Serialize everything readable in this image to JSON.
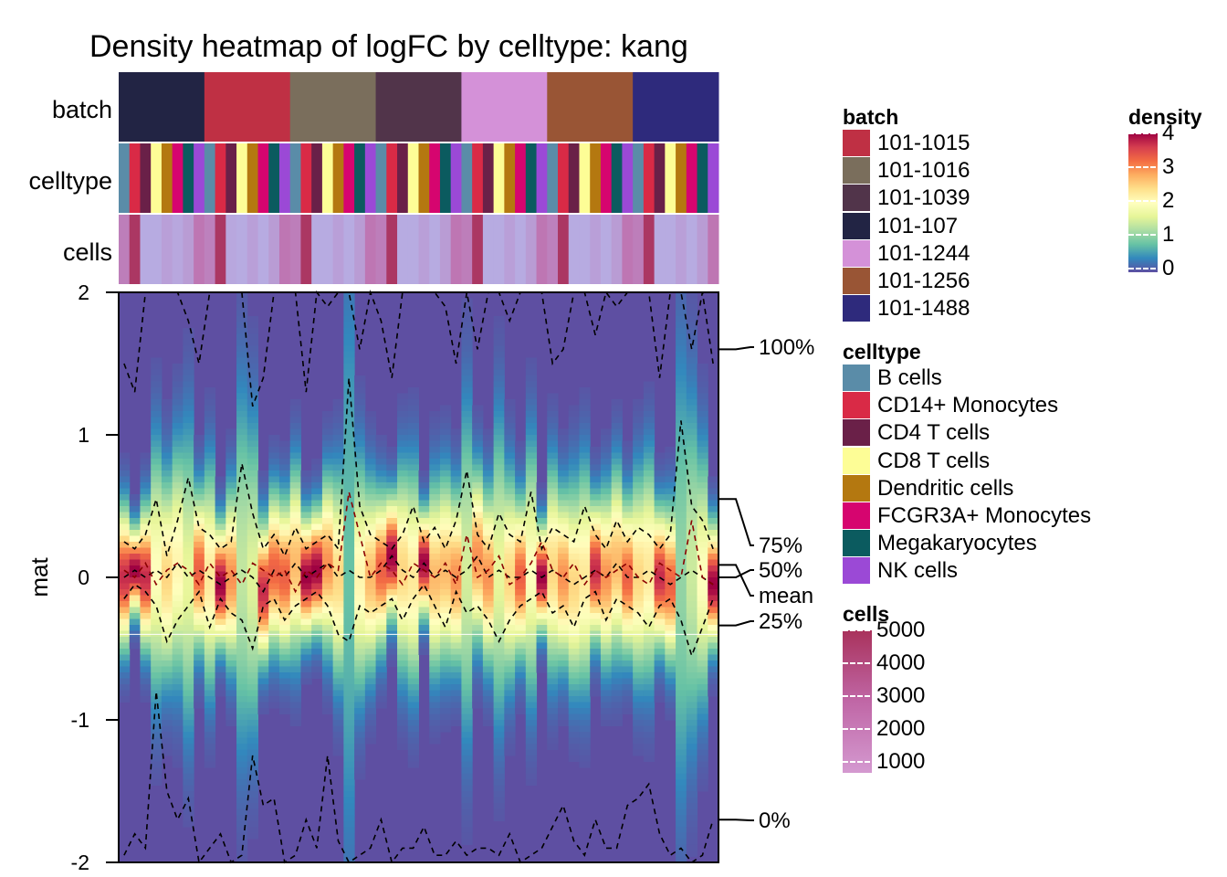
{
  "chart_data": {
    "type": "heatmap",
    "title": "Density heatmap of logFC by celltype: kang",
    "ylabel": "mat",
    "ylim": [
      -2,
      2
    ],
    "y_ticks": [
      "2",
      "1",
      "0",
      "-1",
      "-2"
    ],
    "annotation_rows": [
      "batch",
      "celltype",
      "cells"
    ],
    "batches": [
      "101-107",
      "101-1015",
      "101-1016",
      "101-1039",
      "101-1244",
      "101-1256",
      "101-1488"
    ],
    "celltypes": [
      "B cells",
      "CD14+ Monocytes",
      "CD4 T cells",
      "CD8 T cells",
      "Dendritic cells",
      "FCGR3A+ Monocytes",
      "Megakaryocytes",
      "NK cells"
    ],
    "column_count": 56,
    "cells_per_column": [
      2400,
      4800,
      1200,
      1200,
      1500,
      1300,
      1600,
      2600,
      2300,
      4800,
      1300,
      1200,
      1500,
      1200,
      1600,
      2600,
      2400,
      4800,
      1200,
      1200,
      1500,
      1200,
      1600,
      2600,
      2400,
      4800,
      1200,
      1200,
      1500,
      1200,
      1600,
      2600,
      2400,
      4800,
      1200,
      1200,
      1500,
      1200,
      1600,
      2600,
      2300,
      4800,
      1200,
      1200,
      1500,
      1200,
      1600,
      2600,
      2400,
      4800,
      1200,
      1200,
      1500,
      1200,
      1600,
      2600
    ],
    "quantiles": {
      "q0": [
        -1.95,
        -1.8,
        -1.9,
        -0.8,
        -1.5,
        -1.7,
        -1.55,
        -2,
        -1.9,
        -1.8,
        -2,
        -1.95,
        -1.25,
        -1.6,
        -1.55,
        -2,
        -1.95,
        -1.7,
        -1.9,
        -1.25,
        -1.85,
        -2,
        -1.95,
        -1.9,
        -1.7,
        -2,
        -1.9,
        -1.9,
        -1.75,
        -1.95,
        -1.95,
        -1.85,
        -1.95,
        -1.9,
        -1.9,
        -1.95,
        -1.8,
        -2,
        -1.95,
        -1.9,
        -1.75,
        -1.6,
        -1.85,
        -1.95,
        -1.7,
        -1.9,
        -1.9,
        -1.6,
        -1.55,
        -1.45,
        -1.8,
        -1.95,
        -1.9,
        -2,
        -1.95,
        -1.7
      ],
      "q25": [
        -0.15,
        -0.05,
        -0.1,
        -0.2,
        -0.45,
        -0.3,
        -0.2,
        -0.1,
        -0.35,
        -0.15,
        -0.25,
        -0.3,
        -0.5,
        -0.2,
        -0.15,
        -0.3,
        -0.2,
        -0.15,
        -0.1,
        -0.2,
        -0.4,
        -0.45,
        -0.2,
        -0.25,
        -0.2,
        -0.15,
        -0.3,
        -0.15,
        -0.05,
        -0.2,
        -0.35,
        -0.1,
        -0.25,
        -0.2,
        -0.3,
        -0.45,
        -0.3,
        -0.2,
        -0.15,
        -0.1,
        -0.25,
        -0.2,
        -0.35,
        -0.15,
        -0.1,
        -0.3,
        -0.15,
        -0.2,
        -0.25,
        -0.35,
        -0.2,
        -0.15,
        -0.3,
        -0.55,
        -0.35,
        -0.15
      ],
      "q50": [
        0.0,
        0.05,
        0.0,
        0.05,
        0.0,
        0.1,
        0.0,
        0.05,
        0.0,
        -0.05,
        0.0,
        0.05,
        0.0,
        -0.1,
        0.05,
        0.0,
        0.1,
        0.0,
        0.05,
        0.1,
        0.0,
        0.05,
        0.0,
        0.0,
        0.05,
        0.15,
        0.05,
        0.0,
        0.1,
        0.0,
        0.05,
        0.0,
        0.05,
        0.15,
        0.0,
        0.05,
        0.0,
        0.0,
        0.05,
        0.0,
        0.05,
        0.0,
        -0.05,
        0.0,
        0.05,
        0.0,
        0.1,
        0.0,
        0.0,
        0.05,
        0.0,
        -0.05,
        0.0,
        0.05,
        0.0,
        -0.05
      ],
      "mean": [
        0.05,
        0.0,
        0.1,
        -0.05,
        0.05,
        0.1,
        0.05,
        -0.05,
        0.1,
        0.0,
        0.05,
        -0.05,
        0.1,
        0.05,
        0.0,
        0.05,
        -0.1,
        0.05,
        0.0,
        0.1,
        0.05,
        0.6,
        0.3,
        0.0,
        0.1,
        0.05,
        -0.05,
        0.1,
        0.05,
        0.0,
        0.1,
        -0.05,
        0.3,
        0.0,
        0.05,
        0.15,
        -0.05,
        0.0,
        0.1,
        0.25,
        0.05,
        0.0,
        0.1,
        -0.05,
        0.05,
        0.0,
        0.05,
        0.1,
        0.0,
        -0.05,
        0.1,
        0.05,
        0.0,
        0.4,
        0.0,
        -0.05
      ],
      "q75": [
        0.25,
        0.2,
        0.3,
        0.55,
        0.15,
        0.4,
        0.7,
        0.35,
        0.3,
        0.2,
        0.25,
        0.8,
        0.45,
        0.2,
        0.3,
        0.15,
        0.35,
        0.2,
        0.25,
        0.3,
        0.2,
        1.4,
        0.5,
        0.3,
        0.25,
        0.2,
        0.3,
        0.5,
        0.25,
        0.35,
        0.2,
        0.4,
        0.75,
        0.3,
        0.2,
        0.45,
        0.3,
        0.25,
        0.6,
        0.2,
        0.35,
        0.3,
        0.25,
        0.5,
        0.3,
        0.2,
        0.4,
        0.25,
        0.35,
        0.3,
        0.2,
        0.3,
        1.1,
        0.5,
        0.4,
        0.2
      ],
      "q100": [
        1.5,
        1.3,
        2.3,
        2,
        2.2,
        2.1,
        1.8,
        1.5,
        2.2,
        2.3,
        2.1,
        2,
        1.2,
        1.4,
        2.3,
        2.1,
        2.2,
        1.3,
        2,
        1.9,
        2.1,
        2.3,
        1.6,
        2.2,
        1.8,
        1.4,
        2,
        2.1,
        2.3,
        2.2,
        1.9,
        1.5,
        2.1,
        1.6,
        2.2,
        2,
        1.8,
        2.3,
        2.2,
        2.1,
        1.5,
        1.6,
        2.1,
        2,
        1.7,
        2.2,
        1.9,
        2.3,
        2.2,
        2.1,
        1.4,
        2,
        2.1,
        1.6,
        2,
        1.5
      ]
    },
    "right_labels": [
      "100%",
      "75%",
      "50%",
      "mean",
      "25%",
      "0%"
    ],
    "density_scale": {
      "min": 0,
      "max": 4,
      "ticks": [
        "4",
        "3",
        "2",
        "1",
        "0"
      ]
    },
    "cells_scale": {
      "min": 1000,
      "max": 5000,
      "ticks": [
        "5000",
        "4000",
        "3000",
        "2000",
        "1000"
      ]
    }
  },
  "legends": {
    "batch": {
      "title": "batch",
      "items": [
        {
          "label": "101-1015",
          "color": "#bf3044"
        },
        {
          "label": "101-1016",
          "color": "#7a6e5c"
        },
        {
          "label": "101-1039",
          "color": "#51344a"
        },
        {
          "label": "101-107",
          "color": "#222444"
        },
        {
          "label": "101-1244",
          "color": "#d491d8"
        },
        {
          "label": "101-1256",
          "color": "#995535"
        },
        {
          "label": "101-1488",
          "color": "#2e2a7c"
        }
      ]
    },
    "celltype": {
      "title": "celltype",
      "items": [
        {
          "label": "B cells",
          "color": "#5a8ca8"
        },
        {
          "label": "CD14+ Monocytes",
          "color": "#d92a46"
        },
        {
          "label": "CD4 T cells",
          "color": "#6a2048"
        },
        {
          "label": "CD8 T cells",
          "color": "#fdfd96"
        },
        {
          "label": "Dendritic cells",
          "color": "#b47810"
        },
        {
          "label": "FCGR3A+ Monocytes",
          "color": "#d6056f"
        },
        {
          "label": "Megakaryocytes",
          "color": "#0b5b5f"
        },
        {
          "label": "NK cells",
          "color": "#9b49d6"
        }
      ]
    },
    "cells": {
      "title": "cells"
    },
    "density": {
      "title": "density"
    }
  }
}
